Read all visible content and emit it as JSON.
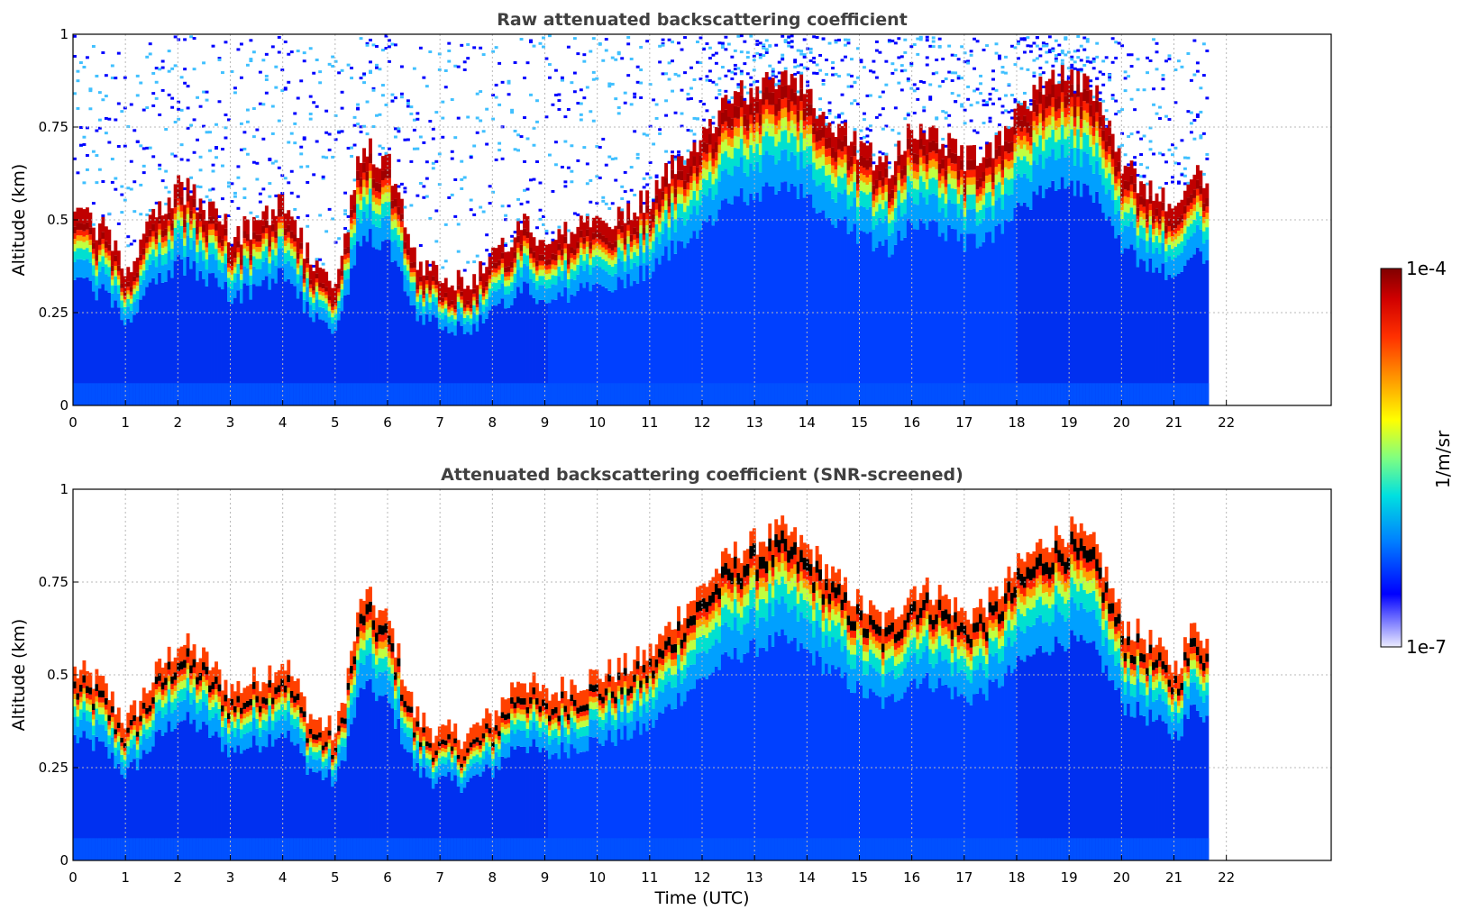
{
  "chart_data": [
    {
      "type": "heatmap",
      "title": "Raw attenuated backscattering coefficient",
      "xlabel": "",
      "ylabel": "Altitude (km)",
      "xlim": [
        0,
        24
      ],
      "ylim": [
        0,
        1
      ],
      "x_ticks": [
        "0",
        "1",
        "2",
        "3",
        "4",
        "5",
        "6",
        "7",
        "8",
        "9",
        "10",
        "11",
        "12",
        "13",
        "14",
        "15",
        "16",
        "17",
        "18",
        "19",
        "20",
        "21",
        "22"
      ],
      "y_ticks": [
        "0",
        "0.25",
        "0.5",
        "0.75",
        "1"
      ],
      "grid": true,
      "data_end_time": 21.6,
      "layer_top_profile": [
        [
          0,
          0.47
        ],
        [
          0.5,
          0.44
        ],
        [
          1,
          0.33
        ],
        [
          1.5,
          0.45
        ],
        [
          2,
          0.55
        ],
        [
          2.5,
          0.5
        ],
        [
          3,
          0.42
        ],
        [
          3.5,
          0.45
        ],
        [
          4,
          0.5
        ],
        [
          4.5,
          0.35
        ],
        [
          5,
          0.3
        ],
        [
          5.5,
          0.68
        ],
        [
          6,
          0.6
        ],
        [
          6.5,
          0.35
        ],
        [
          7,
          0.3
        ],
        [
          7.5,
          0.3
        ],
        [
          8,
          0.35
        ],
        [
          8.5,
          0.46
        ],
        [
          9,
          0.4
        ],
        [
          9.5,
          0.44
        ],
        [
          10,
          0.46
        ],
        [
          10.5,
          0.48
        ],
        [
          11,
          0.52
        ],
        [
          11.5,
          0.62
        ],
        [
          12,
          0.7
        ],
        [
          12.5,
          0.78
        ],
        [
          13,
          0.82
        ],
        [
          13.5,
          0.85
        ],
        [
          14,
          0.8
        ],
        [
          14.5,
          0.72
        ],
        [
          15,
          0.65
        ],
        [
          15.5,
          0.6
        ],
        [
          16,
          0.7
        ],
        [
          16.5,
          0.68
        ],
        [
          17,
          0.62
        ],
        [
          17.5,
          0.66
        ],
        [
          18,
          0.75
        ],
        [
          18.5,
          0.82
        ],
        [
          19,
          0.85
        ],
        [
          19.5,
          0.8
        ],
        [
          20,
          0.6
        ],
        [
          20.5,
          0.55
        ],
        [
          21,
          0.48
        ],
        [
          21.4,
          0.6
        ],
        [
          21.6,
          0.55
        ]
      ]
    },
    {
      "type": "heatmap",
      "title": "Attenuated backscattering coefficient (SNR-screened)",
      "xlabel": "Time (UTC)",
      "ylabel": "Altitude (km)",
      "xlim": [
        0,
        24
      ],
      "ylim": [
        0,
        1
      ],
      "x_ticks": [
        "0",
        "1",
        "2",
        "3",
        "4",
        "5",
        "6",
        "7",
        "8",
        "9",
        "10",
        "11",
        "12",
        "13",
        "14",
        "15",
        "16",
        "17",
        "18",
        "19",
        "20",
        "21",
        "22"
      ],
      "y_ticks": [
        "0",
        "0.25",
        "0.5",
        "0.75",
        "1"
      ],
      "grid": true,
      "data_end_time": 21.6
    }
  ],
  "colorbar": {
    "label": "1/m/sr",
    "max_label": "1e-4",
    "min_label": "1e-7",
    "scale": "log",
    "range": [
      1e-07,
      0.0001
    ],
    "colormap": [
      "#e8e8ff",
      "#8080ff",
      "#0000ff",
      "#0050ff",
      "#00a0ff",
      "#00e0e0",
      "#40ffb0",
      "#c0ff40",
      "#ffff00",
      "#ffc000",
      "#ff7000",
      "#ff2000",
      "#d00000",
      "#800000"
    ]
  }
}
